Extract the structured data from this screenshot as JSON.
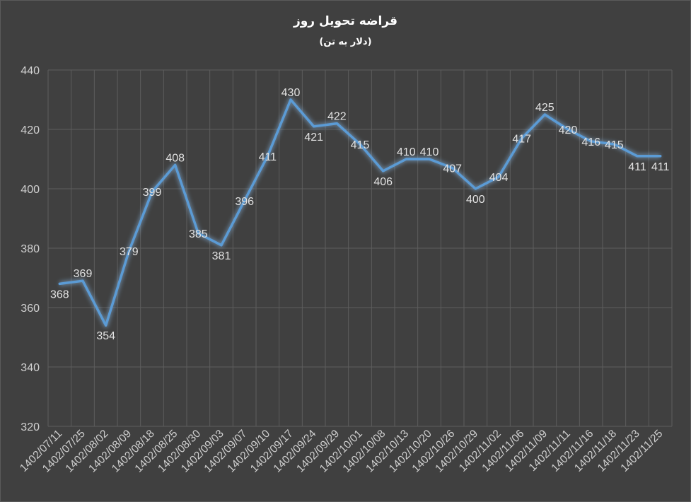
{
  "chart_data": {
    "type": "line",
    "title": "قراضه تحویل روز",
    "subtitle": "(دلار به تن)",
    "categories": [
      "1402/07/11",
      "1402/07/25",
      "1402/08/02",
      "1402/08/09",
      "1402/08/18",
      "1402/08/25",
      "1402/08/30",
      "1402/09/03",
      "1402/09/07",
      "1402/09/10",
      "1402/09/17",
      "1402/09/24",
      "1402/09/29",
      "1402/10/01",
      "1402/10/08",
      "1402/10/13",
      "1402/10/20",
      "1402/10/26",
      "1402/10/29",
      "1402/11/02",
      "1402/11/06",
      "1402/11/09",
      "1402/11/11",
      "1402/11/16",
      "1402/11/18",
      "1402/11/23",
      "1402/11/25"
    ],
    "series": [
      {
        "values": [
          368,
          369,
          354,
          379,
          399,
          408,
          385,
          381,
          396,
          411,
          430,
          421,
          422,
          415,
          406,
          410,
          410,
          407,
          400,
          404,
          417,
          425,
          420,
          416,
          415,
          411,
          411
        ]
      }
    ],
    "yticks": [
      320,
      340,
      360,
      380,
      400,
      420,
      440
    ],
    "ylim": [
      320,
      440
    ],
    "grid": true,
    "legend": "none",
    "colors": {
      "line": "#5b9bd5",
      "background": "#404040",
      "grid": "#5e5e5e"
    }
  }
}
